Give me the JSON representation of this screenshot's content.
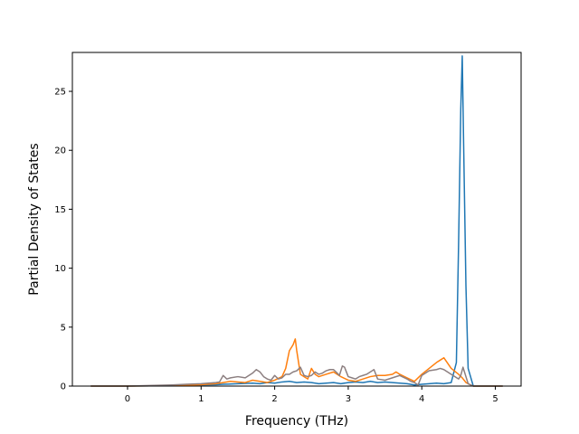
{
  "chart_data": {
    "type": "line",
    "title": "",
    "xlabel": "Frequency (THz)",
    "ylabel": "Partial Density of States",
    "xlim": [
      -0.75,
      5.35
    ],
    "ylim": [
      0,
      28.3
    ],
    "xticks": [
      0,
      1,
      2,
      3,
      4,
      5
    ],
    "yticks": [
      0,
      5,
      10,
      15,
      20,
      25
    ],
    "grid": false,
    "legend": "none",
    "series": [
      {
        "color": "#1f77b4",
        "x": [
          -0.5,
          0.0,
          0.3,
          0.6,
          0.9,
          1.0,
          1.2,
          1.3,
          1.5,
          1.7,
          1.8,
          1.9,
          2.0,
          2.1,
          2.2,
          2.3,
          2.4,
          2.5,
          2.6,
          2.7,
          2.8,
          2.9,
          3.0,
          3.1,
          3.2,
          3.3,
          3.4,
          3.5,
          3.6,
          3.7,
          3.8,
          3.9,
          4.0,
          4.1,
          4.2,
          4.3,
          4.4,
          4.47,
          4.5,
          4.53,
          4.55,
          4.57,
          4.6,
          4.63,
          4.7,
          5.1
        ],
        "y": [
          0,
          0,
          0.02,
          0.05,
          0.08,
          0.1,
          0.12,
          0.15,
          0.2,
          0.25,
          0.2,
          0.3,
          0.25,
          0.35,
          0.4,
          0.3,
          0.35,
          0.3,
          0.2,
          0.25,
          0.3,
          0.2,
          0.3,
          0.35,
          0.3,
          0.4,
          0.3,
          0.35,
          0.3,
          0.25,
          0.2,
          0.1,
          0.15,
          0.2,
          0.25,
          0.2,
          0.3,
          2.0,
          12.0,
          23.5,
          28.0,
          20.0,
          8.5,
          1.5,
          0,
          0
        ]
      },
      {
        "color": "#ff7f0e",
        "x": [
          -0.5,
          0.0,
          0.3,
          0.6,
          0.9,
          1.0,
          1.2,
          1.3,
          1.4,
          1.5,
          1.6,
          1.7,
          1.8,
          1.9,
          2.0,
          2.1,
          2.15,
          2.2,
          2.25,
          2.28,
          2.3,
          2.35,
          2.4,
          2.45,
          2.5,
          2.55,
          2.6,
          2.7,
          2.8,
          2.85,
          2.9,
          3.0,
          3.1,
          3.2,
          3.3,
          3.4,
          3.5,
          3.6,
          3.65,
          3.7,
          3.8,
          3.9,
          4.0,
          4.1,
          4.2,
          4.25,
          4.3,
          4.4,
          4.5,
          4.55,
          4.6,
          4.63,
          4.7,
          5.1
        ],
        "y": [
          0,
          0,
          0.02,
          0.05,
          0.1,
          0.12,
          0.2,
          0.3,
          0.4,
          0.35,
          0.3,
          0.5,
          0.4,
          0.3,
          0.5,
          0.8,
          1.5,
          3.0,
          3.5,
          4.0,
          3.0,
          1.0,
          0.8,
          0.6,
          1.5,
          1.0,
          0.8,
          1.0,
          1.2,
          1.0,
          0.8,
          0.5,
          0.4,
          0.6,
          0.8,
          0.9,
          0.9,
          1.0,
          1.2,
          1.0,
          0.7,
          0.4,
          1.0,
          1.5,
          2.0,
          2.2,
          2.4,
          1.5,
          1.0,
          0.7,
          0.3,
          0.2,
          0,
          0
        ]
      },
      {
        "color": "#8c7f80",
        "x": [
          -0.5,
          0.0,
          0.3,
          0.6,
          0.8,
          1.0,
          1.2,
          1.25,
          1.3,
          1.35,
          1.4,
          1.5,
          1.6,
          1.7,
          1.75,
          1.8,
          1.85,
          1.9,
          1.95,
          2.0,
          2.05,
          2.1,
          2.15,
          2.2,
          2.25,
          2.3,
          2.35,
          2.4,
          2.45,
          2.5,
          2.55,
          2.6,
          2.65,
          2.7,
          2.75,
          2.8,
          2.85,
          2.88,
          2.92,
          2.95,
          3.0,
          3.05,
          3.1,
          3.15,
          3.2,
          3.25,
          3.3,
          3.35,
          3.4,
          3.5,
          3.6,
          3.7,
          3.8,
          3.85,
          3.9,
          3.95,
          4.0,
          4.1,
          4.2,
          4.25,
          4.3,
          4.4,
          4.5,
          4.53,
          4.56,
          4.6,
          4.63,
          4.7,
          5.1
        ],
        "y": [
          0,
          0,
          0.05,
          0.1,
          0.15,
          0.2,
          0.3,
          0.35,
          0.9,
          0.6,
          0.7,
          0.8,
          0.7,
          1.1,
          1.4,
          1.2,
          0.8,
          0.6,
          0.5,
          0.9,
          0.6,
          0.7,
          1.0,
          1.0,
          1.2,
          1.3,
          1.6,
          0.9,
          0.8,
          0.9,
          1.2,
          1.0,
          1.1,
          1.3,
          1.4,
          1.4,
          1.1,
          0.9,
          1.7,
          1.6,
          0.8,
          0.7,
          0.6,
          0.8,
          0.9,
          1.0,
          1.2,
          1.4,
          0.6,
          0.5,
          0.7,
          0.9,
          0.6,
          0.4,
          0.3,
          0.1,
          0.9,
          1.3,
          1.4,
          1.5,
          1.4,
          1.0,
          0.6,
          0.9,
          1.6,
          0.8,
          0.2,
          0,
          0
        ]
      }
    ]
  }
}
